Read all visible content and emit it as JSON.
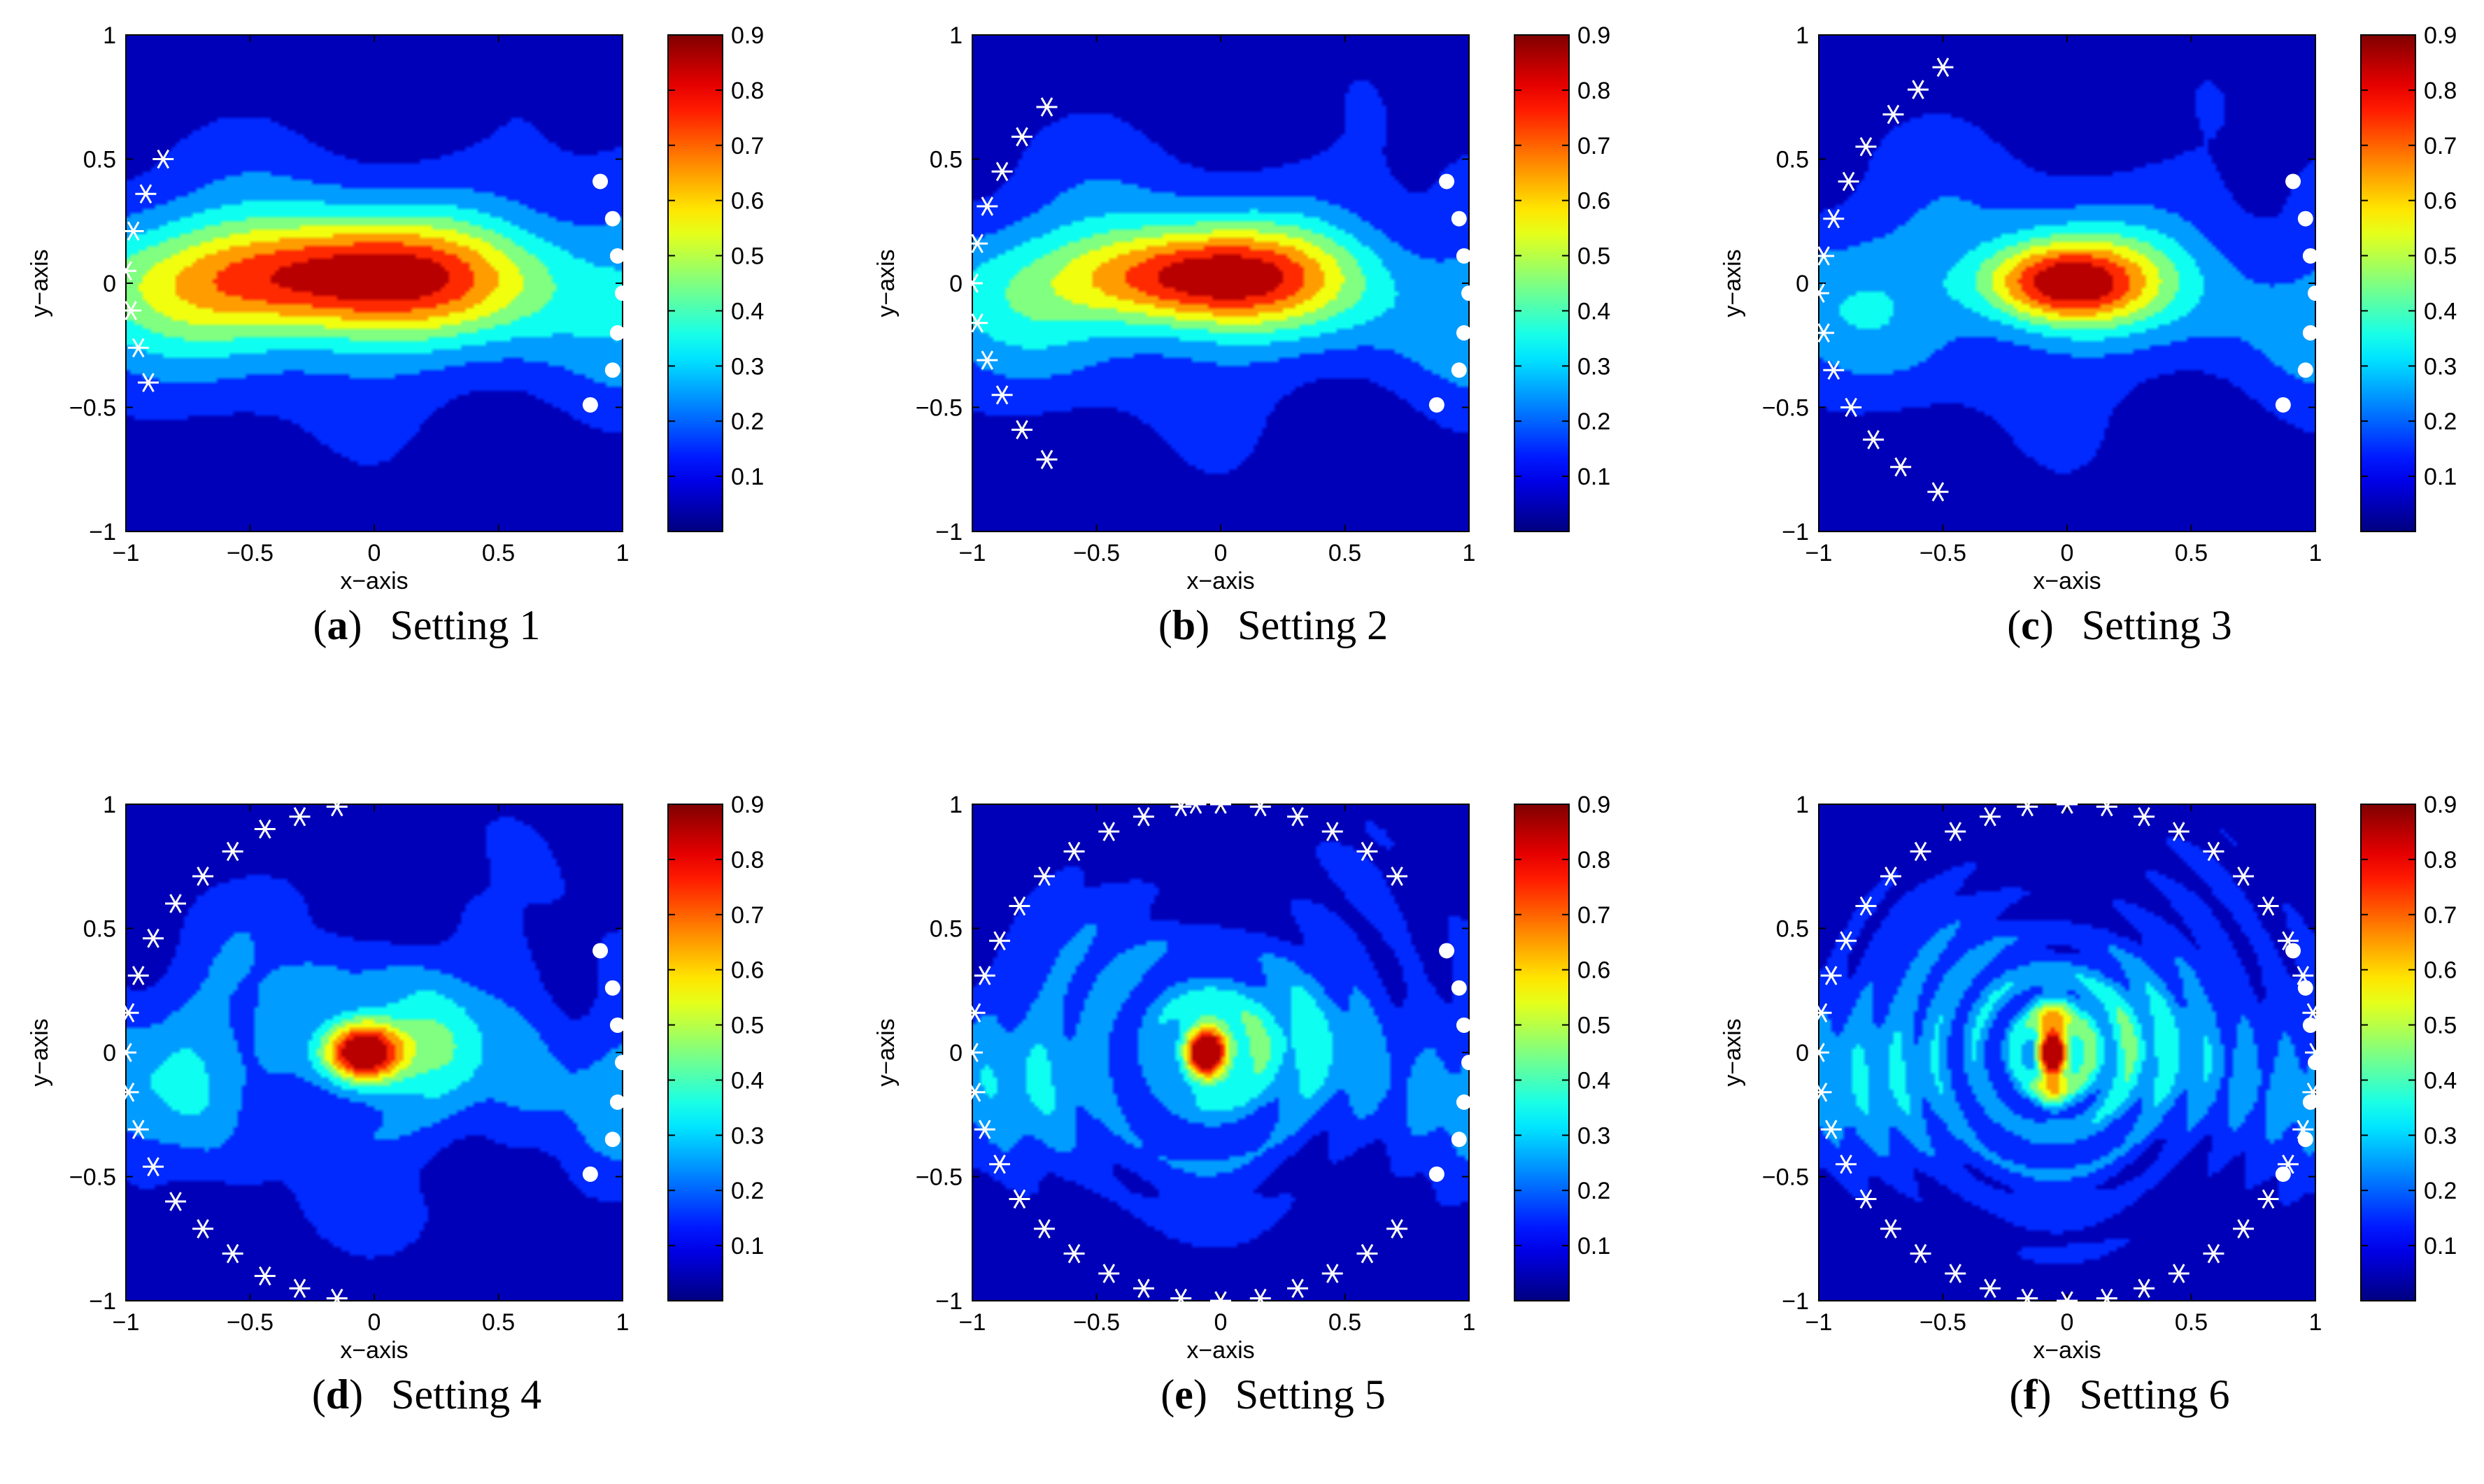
{
  "figure": {
    "panels": [
      {
        "letter": "a",
        "caption": "Setting 1"
      },
      {
        "letter": "b",
        "caption": "Setting 2"
      },
      {
        "letter": "c",
        "caption": "Setting 3"
      },
      {
        "letter": "d",
        "caption": "Setting 4"
      },
      {
        "letter": "e",
        "caption": "Setting 5"
      },
      {
        "letter": "f",
        "caption": "Setting 6"
      }
    ]
  },
  "chart_data": [
    {
      "type": "heatmap",
      "title": "",
      "xlabel": "x−axis",
      "ylabel": "y−axis",
      "xlim": [
        -1,
        1
      ],
      "ylim": [
        -1,
        1
      ],
      "xticks": [
        "−1",
        "−0.5",
        "0",
        "0.5",
        "1"
      ],
      "yticks": [
        "1",
        "0.5",
        "0",
        "−0.5",
        "−1"
      ],
      "colorbar": {
        "ticks": [
          "0.9",
          "0.8",
          "0.7",
          "0.6",
          "0.5",
          "0.4",
          "0.3",
          "0.2",
          "0.1"
        ],
        "range": [
          0.0,
          0.9
        ]
      },
      "field": {
        "peak_x": -0.15,
        "peak_y": 0.02,
        "sx": 0.5,
        "sy": 0.16,
        "base": 0.25,
        "amp": 0.65,
        "osc_k": 0,
        "osc_a": 0,
        "ripple": 0.08
      },
      "sources": [
        [
          -0.85,
          0.5
        ],
        [
          -0.92,
          0.36
        ],
        [
          -0.97,
          0.21
        ],
        [
          -1.0,
          0.05
        ],
        [
          -0.98,
          -0.11
        ],
        [
          -0.95,
          -0.26
        ],
        [
          -0.91,
          -0.4
        ]
      ],
      "receivers": [
        [
          0.91,
          0.41
        ],
        [
          0.96,
          0.26
        ],
        [
          0.98,
          0.11
        ],
        [
          1.0,
          -0.04
        ],
        [
          0.98,
          -0.2
        ],
        [
          0.96,
          -0.35
        ],
        [
          0.87,
          -0.49
        ]
      ]
    },
    {
      "type": "heatmap",
      "title": "",
      "xlabel": "x−axis",
      "ylabel": "y−axis",
      "xlim": [
        -1,
        1
      ],
      "ylim": [
        -1,
        1
      ],
      "xticks": [
        "−1",
        "−0.5",
        "0",
        "0.5",
        "1"
      ],
      "yticks": [
        "1",
        "0.5",
        "0",
        "−0.5",
        "−1"
      ],
      "colorbar": {
        "ticks": [
          "0.9",
          "0.8",
          "0.7",
          "0.6",
          "0.5",
          "0.4",
          "0.3",
          "0.2",
          "0.1"
        ],
        "range": [
          0.0,
          0.9
        ]
      },
      "field": {
        "peak_x": -0.1,
        "peak_y": 0.02,
        "sx": 0.38,
        "sy": 0.14,
        "base": 0.22,
        "amp": 0.68,
        "osc_k": 0,
        "osc_a": 0,
        "ripple": 0.1
      },
      "sources": [
        [
          -0.7,
          0.71
        ],
        [
          -0.8,
          0.59
        ],
        [
          -0.88,
          0.45
        ],
        [
          -0.94,
          0.31
        ],
        [
          -0.98,
          0.16
        ],
        [
          -1.0,
          0.0
        ],
        [
          -0.98,
          -0.16
        ],
        [
          -0.94,
          -0.31
        ],
        [
          -0.88,
          -0.45
        ],
        [
          -0.8,
          -0.59
        ],
        [
          -0.7,
          -0.71
        ]
      ],
      "receivers": [
        [
          0.91,
          0.41
        ],
        [
          0.96,
          0.26
        ],
        [
          0.98,
          0.11
        ],
        [
          1.0,
          -0.04
        ],
        [
          0.98,
          -0.2
        ],
        [
          0.96,
          -0.35
        ],
        [
          0.87,
          -0.49
        ]
      ]
    },
    {
      "type": "heatmap",
      "title": "",
      "xlabel": "x−axis",
      "ylabel": "y−axis",
      "xlim": [
        -1,
        1
      ],
      "ylim": [
        -1,
        1
      ],
      "xticks": [
        "−1",
        "−0.5",
        "0",
        "0.5",
        "1"
      ],
      "yticks": [
        "1",
        "0.5",
        "0",
        "−0.5",
        "−1"
      ],
      "colorbar": {
        "ticks": [
          "0.9",
          "0.8",
          "0.7",
          "0.6",
          "0.5",
          "0.4",
          "0.3",
          "0.2",
          "0.1"
        ],
        "range": [
          0.0,
          0.9
        ]
      },
      "field": {
        "peak_x": -0.02,
        "peak_y": 0.0,
        "sx": 0.24,
        "sy": 0.12,
        "base": 0.2,
        "amp": 0.7,
        "osc_k": 0,
        "osc_a": 0,
        "ripple": 0.1
      },
      "sources": [
        [
          -0.5,
          0.87
        ],
        [
          -0.6,
          0.78
        ],
        [
          -0.7,
          0.68
        ],
        [
          -0.81,
          0.55
        ],
        [
          -0.88,
          0.41
        ],
        [
          -0.94,
          0.26
        ],
        [
          -0.98,
          0.11
        ],
        [
          -1.0,
          -0.04
        ],
        [
          -0.98,
          -0.2
        ],
        [
          -0.94,
          -0.35
        ],
        [
          -0.87,
          -0.5
        ],
        [
          -0.78,
          -0.63
        ],
        [
          -0.67,
          -0.74
        ],
        [
          -0.52,
          -0.84
        ]
      ],
      "receivers": [
        [
          0.91,
          0.41
        ],
        [
          0.96,
          0.26
        ],
        [
          0.98,
          0.11
        ],
        [
          1.0,
          -0.04
        ],
        [
          0.98,
          -0.2
        ],
        [
          0.96,
          -0.35
        ],
        [
          0.87,
          -0.49
        ]
      ]
    },
    {
      "type": "heatmap",
      "title": "",
      "xlabel": "x−axis",
      "ylabel": "y−axis",
      "xlim": [
        -1,
        1
      ],
      "ylim": [
        -1,
        1
      ],
      "xticks": [
        "−1",
        "−0.5",
        "0",
        "0.5",
        "1"
      ],
      "yticks": [
        "1",
        "0.5",
        "0",
        "−0.5",
        "−1"
      ],
      "colorbar": {
        "ticks": [
          "0.9",
          "0.8",
          "0.7",
          "0.6",
          "0.5",
          "0.4",
          "0.3",
          "0.2",
          "0.1"
        ],
        "range": [
          0.0,
          0.9
        ]
      },
      "field": {
        "peak_x": -0.05,
        "peak_y": 0.0,
        "sx": 0.13,
        "sy": 0.09,
        "base": 0.18,
        "amp": 0.72,
        "osc_k": 9,
        "osc_a": 0.08,
        "ripple": 0.12
      },
      "sources": [
        [
          -0.15,
          0.99
        ],
        [
          -0.3,
          0.95
        ],
        [
          -0.44,
          0.9
        ],
        [
          -0.57,
          0.81
        ],
        [
          -0.69,
          0.71
        ],
        [
          -0.8,
          0.6
        ],
        [
          -0.89,
          0.46
        ],
        [
          -0.95,
          0.31
        ],
        [
          -0.99,
          0.16
        ],
        [
          -1.0,
          0.0
        ],
        [
          -0.99,
          -0.16
        ],
        [
          -0.95,
          -0.31
        ],
        [
          -0.89,
          -0.46
        ],
        [
          -0.8,
          -0.6
        ],
        [
          -0.69,
          -0.71
        ],
        [
          -0.57,
          -0.81
        ],
        [
          -0.44,
          -0.9
        ],
        [
          -0.3,
          -0.95
        ],
        [
          -0.15,
          -0.99
        ]
      ],
      "receivers": [
        [
          0.91,
          0.41
        ],
        [
          0.96,
          0.26
        ],
        [
          0.98,
          0.11
        ],
        [
          1.0,
          -0.04
        ],
        [
          0.98,
          -0.2
        ],
        [
          0.96,
          -0.35
        ],
        [
          0.87,
          -0.49
        ]
      ]
    },
    {
      "type": "heatmap",
      "title": "",
      "xlabel": "x−axis",
      "ylabel": "y−axis",
      "xlim": [
        -1,
        1
      ],
      "ylim": [
        -1,
        1
      ],
      "xticks": [
        "−1",
        "−0.5",
        "0",
        "0.5",
        "1"
      ],
      "yticks": [
        "1",
        "0.5",
        "0",
        "−0.5",
        "−1"
      ],
      "colorbar": {
        "ticks": [
          "0.9",
          "0.8",
          "0.7",
          "0.6",
          "0.5",
          "0.4",
          "0.3",
          "0.2",
          "0.1"
        ],
        "range": [
          0.0,
          0.9
        ]
      },
      "field": {
        "peak_x": -0.06,
        "peak_y": 0.0,
        "sx": 0.07,
        "sy": 0.09,
        "base": 0.16,
        "amp": 0.74,
        "osc_k": 14,
        "osc_a": 0.16,
        "ripple": 0.1
      },
      "sources": [
        [
          -0.1,
          1.0
        ],
        [
          -0.16,
          0.99
        ],
        [
          -0.31,
          0.95
        ],
        [
          -0.45,
          0.89
        ],
        [
          -0.59,
          0.81
        ],
        [
          -0.71,
          0.71
        ],
        [
          -0.81,
          0.59
        ],
        [
          -0.89,
          0.45
        ],
        [
          -0.95,
          0.31
        ],
        [
          -0.99,
          0.16
        ],
        [
          -1.0,
          0.0
        ],
        [
          -0.99,
          -0.16
        ],
        [
          -0.95,
          -0.31
        ],
        [
          -0.89,
          -0.45
        ],
        [
          -0.81,
          -0.59
        ],
        [
          -0.71,
          -0.71
        ],
        [
          -0.59,
          -0.81
        ],
        [
          -0.45,
          -0.89
        ],
        [
          -0.31,
          -0.95
        ],
        [
          -0.16,
          -0.99
        ],
        [
          0.0,
          -1.0
        ],
        [
          0.16,
          -0.99
        ],
        [
          0.31,
          -0.95
        ],
        [
          0.45,
          -0.89
        ],
        [
          0.59,
          -0.81
        ],
        [
          0.71,
          -0.71
        ],
        [
          0.0,
          1.0
        ],
        [
          0.16,
          0.99
        ],
        [
          0.31,
          0.95
        ],
        [
          0.45,
          0.89
        ],
        [
          0.59,
          0.81
        ],
        [
          0.71,
          0.71
        ]
      ],
      "receivers": [
        [
          0.91,
          0.41
        ],
        [
          0.96,
          0.26
        ],
        [
          0.98,
          0.11
        ],
        [
          1.0,
          -0.04
        ],
        [
          0.98,
          -0.2
        ],
        [
          0.96,
          -0.35
        ],
        [
          0.87,
          -0.49
        ]
      ]
    },
    {
      "type": "heatmap",
      "title": "",
      "xlabel": "x−axis",
      "ylabel": "y−axis",
      "xlim": [
        -1,
        1
      ],
      "ylim": [
        -1,
        1
      ],
      "xticks": [
        "−1",
        "−0.5",
        "0",
        "0.5",
        "1"
      ],
      "yticks": [
        "1",
        "0.5",
        "0",
        "−0.5",
        "−1"
      ],
      "colorbar": {
        "ticks": [
          "0.9",
          "0.8",
          "0.7",
          "0.6",
          "0.5",
          "0.4",
          "0.3",
          "0.2",
          "0.1"
        ],
        "range": [
          0.0,
          0.9
        ]
      },
      "field": {
        "peak_x": -0.06,
        "peak_y": 0.0,
        "sx": 0.045,
        "sy": 0.11,
        "base": 0.16,
        "amp": 0.74,
        "osc_k": 20,
        "osc_a": 0.2,
        "ripple": 0.08
      },
      "sources": [
        [
          0.0,
          1.0
        ],
        [
          -0.16,
          0.99
        ],
        [
          -0.31,
          0.95
        ],
        [
          -0.45,
          0.89
        ],
        [
          -0.59,
          0.81
        ],
        [
          -0.71,
          0.71
        ],
        [
          -0.81,
          0.59
        ],
        [
          -0.89,
          0.45
        ],
        [
          -0.95,
          0.31
        ],
        [
          -0.99,
          0.16
        ],
        [
          -1.0,
          0.0
        ],
        [
          -0.99,
          -0.16
        ],
        [
          -0.95,
          -0.31
        ],
        [
          -0.89,
          -0.45
        ],
        [
          -0.81,
          -0.59
        ],
        [
          -0.71,
          -0.71
        ],
        [
          -0.59,
          -0.81
        ],
        [
          -0.45,
          -0.89
        ],
        [
          -0.31,
          -0.95
        ],
        [
          -0.16,
          -0.99
        ],
        [
          0.0,
          -1.0
        ],
        [
          0.16,
          -0.99
        ],
        [
          0.31,
          -0.95
        ],
        [
          0.45,
          -0.89
        ],
        [
          0.59,
          -0.81
        ],
        [
          0.71,
          -0.71
        ],
        [
          0.81,
          -0.59
        ],
        [
          0.16,
          0.99
        ],
        [
          0.31,
          0.95
        ],
        [
          0.45,
          0.89
        ],
        [
          0.59,
          0.81
        ],
        [
          0.71,
          0.71
        ],
        [
          0.81,
          0.59
        ],
        [
          0.89,
          0.45
        ],
        [
          0.95,
          0.31
        ],
        [
          0.99,
          0.16
        ],
        [
          1.0,
          0.0
        ],
        [
          0.99,
          -0.16
        ],
        [
          0.95,
          -0.31
        ],
        [
          0.89,
          -0.45
        ]
      ],
      "receivers": [
        [
          0.91,
          0.41
        ],
        [
          0.96,
          0.26
        ],
        [
          0.98,
          0.11
        ],
        [
          1.0,
          -0.04
        ],
        [
          0.98,
          -0.2
        ],
        [
          0.96,
          -0.35
        ],
        [
          0.87,
          -0.49
        ]
      ]
    }
  ]
}
